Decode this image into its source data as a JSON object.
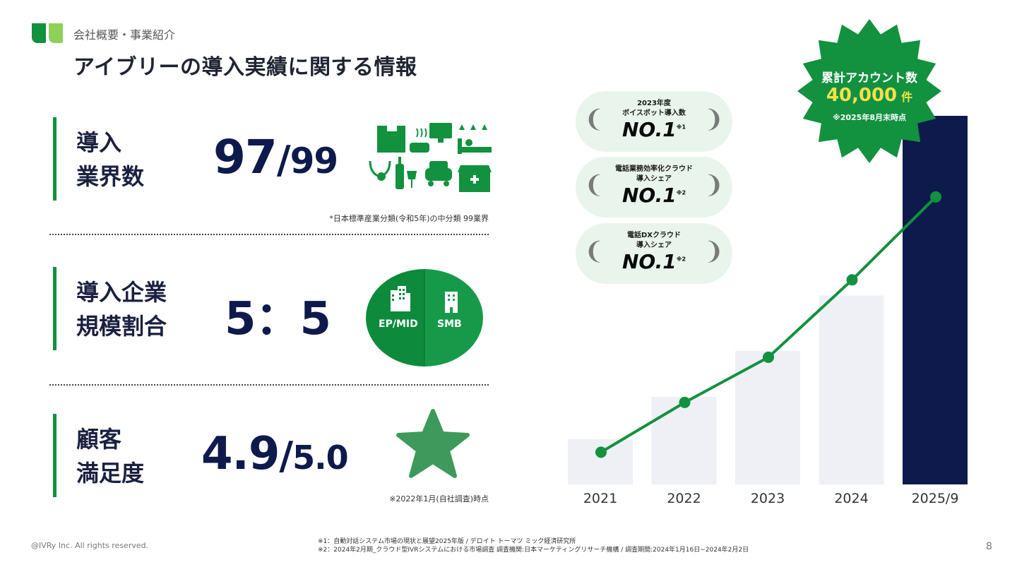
{
  "header": {
    "breadcrumb": "会社概要・事業紹介",
    "title": "アイブリーの導入実績に関する情報"
  },
  "stats": {
    "industries": {
      "label_line1": "導入",
      "label_line2": "業界数",
      "value_main": "97",
      "value_sep": "/",
      "value_total": "99",
      "note": "*日本標準産業分類(令和5年)の中分類 99業界"
    },
    "ratio": {
      "label_line1": "導入企業",
      "label_line2": "規模割合",
      "value": "5：5",
      "pie_left": "EP/MID",
      "pie_right": "SMB",
      "pie_left_fraction": 0.5
    },
    "satisfaction": {
      "label_line1": "顧客",
      "label_line2": "満足度",
      "value_main": "4.9",
      "value_sep": "/",
      "value_total": "5.0",
      "note": "※2022年1月(自社調査)時点"
    }
  },
  "badges": [
    {
      "line1": "2023年度",
      "line2": "ボイスボット導入数",
      "main": "NO.1",
      "sup": "※1"
    },
    {
      "line1": "電話業務効率化クラウド",
      "line2": "導入シェア",
      "main": "NO.1",
      "sup": "※2"
    },
    {
      "line1": "電話DXクラウド",
      "line2": "導入シェア",
      "main": "NO.1",
      "sup": "※2"
    }
  ],
  "burst": {
    "line1": "累計アカウント数",
    "number": "40,000",
    "unit": "件",
    "note": "※2025年8月末時点"
  },
  "chart_data": {
    "type": "bar",
    "categories": [
      "2021",
      "2022",
      "2023",
      "2024",
      "2025/9"
    ],
    "values": [
      4.9,
      9.5,
      14.5,
      20.5,
      40
    ],
    "line_values": [
      3.5,
      8.9,
      13.8,
      22.2,
      31.2
    ],
    "ylim": [
      0,
      40
    ],
    "colors": {
      "bar": "#eef0f5",
      "bar_highlight": "#0e1a4c",
      "line": "#12913f"
    }
  },
  "footer": {
    "copyright": "@IVRy Inc. All rights reserved.",
    "footnote1": "※1：自動対話システム市場の現状と展望2025年版 / デロイト トーマツ ミック経済研究所",
    "footnote2": "※2：2024年2月期_クラウド型IVRシステムにおける市場調査 調査機関:日本マーケティングリサーチ機構 / 調査期間:2024年1月16日~2024年2月2日",
    "page": "8"
  },
  "colors": {
    "brand_green": "#12913f",
    "navy": "#0e1a4c",
    "light_green": "#8fd05a"
  }
}
